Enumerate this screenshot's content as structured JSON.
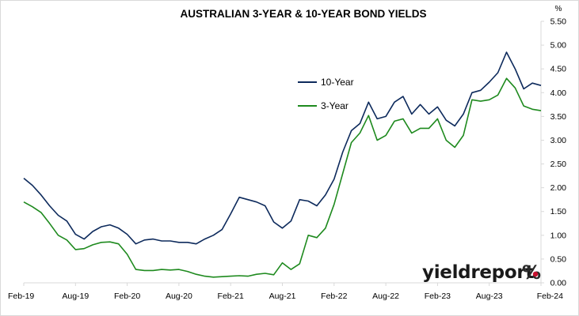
{
  "chart_data": {
    "type": "line",
    "title": "AUSTRALIAN 3-YEAR & 10-YEAR BOND YIELDS",
    "xlabel": "",
    "ylabel": "",
    "y_unit": "%",
    "ylim": [
      0,
      5.5
    ],
    "y_ticks": [
      "0.00",
      "0.50",
      "1.00",
      "1.50",
      "2.00",
      "2.50",
      "3.00",
      "3.50",
      "4.00",
      "4.50",
      "5.00",
      "5.50"
    ],
    "x_ticks": [
      "Feb-19",
      "Aug-19",
      "Feb-20",
      "Aug-20",
      "Feb-21",
      "Aug-21",
      "Feb-22",
      "Aug-22",
      "Feb-23",
      "Aug-23",
      "Feb-24"
    ],
    "legend_position": "center-right",
    "grid": false,
    "axis_position": "right",
    "x": [
      "2019-02",
      "2019-03",
      "2019-04",
      "2019-05",
      "2019-06",
      "2019-07",
      "2019-08",
      "2019-09",
      "2019-10",
      "2019-11",
      "2019-12",
      "2020-01",
      "2020-02",
      "2020-03",
      "2020-04",
      "2020-05",
      "2020-06",
      "2020-07",
      "2020-08",
      "2020-09",
      "2020-10",
      "2020-11",
      "2020-12",
      "2021-01",
      "2021-02",
      "2021-03",
      "2021-04",
      "2021-05",
      "2021-06",
      "2021-07",
      "2021-08",
      "2021-09",
      "2021-10",
      "2021-11",
      "2021-12",
      "2022-01",
      "2022-02",
      "2022-03",
      "2022-04",
      "2022-05",
      "2022-06",
      "2022-07",
      "2022-08",
      "2022-09",
      "2022-10",
      "2022-11",
      "2022-12",
      "2023-01",
      "2023-02",
      "2023-03",
      "2023-04",
      "2023-05",
      "2023-06",
      "2023-07",
      "2023-08",
      "2023-09",
      "2023-10",
      "2023-11",
      "2023-12",
      "2024-01",
      "2024-02"
    ],
    "series": [
      {
        "name": "10-Year",
        "color": "#0d2a5c",
        "values": [
          2.2,
          2.05,
          1.85,
          1.62,
          1.42,
          1.3,
          1.02,
          0.92,
          1.08,
          1.18,
          1.22,
          1.15,
          1.02,
          0.82,
          0.9,
          0.92,
          0.88,
          0.88,
          0.85,
          0.85,
          0.82,
          0.92,
          1.0,
          1.12,
          1.45,
          1.8,
          1.75,
          1.7,
          1.62,
          1.28,
          1.15,
          1.3,
          1.75,
          1.72,
          1.62,
          1.85,
          2.18,
          2.75,
          3.2,
          3.35,
          3.8,
          3.45,
          3.5,
          3.8,
          3.92,
          3.55,
          3.75,
          3.55,
          3.7,
          3.42,
          3.3,
          3.55,
          4.0,
          4.05,
          4.22,
          4.42,
          4.85,
          4.5,
          4.08,
          4.2,
          4.15
        ]
      },
      {
        "name": "3-Year",
        "color": "#1e8a1e",
        "values": [
          1.7,
          1.6,
          1.48,
          1.25,
          1.0,
          0.9,
          0.7,
          0.72,
          0.8,
          0.85,
          0.86,
          0.82,
          0.6,
          0.28,
          0.26,
          0.26,
          0.28,
          0.27,
          0.28,
          0.24,
          0.18,
          0.14,
          0.12,
          0.13,
          0.14,
          0.15,
          0.14,
          0.18,
          0.2,
          0.17,
          0.42,
          0.28,
          0.4,
          1.0,
          0.95,
          1.15,
          1.65,
          2.3,
          2.95,
          3.15,
          3.52,
          3.0,
          3.1,
          3.4,
          3.45,
          3.15,
          3.25,
          3.25,
          3.45,
          3.0,
          2.85,
          3.1,
          3.85,
          3.82,
          3.85,
          3.95,
          4.3,
          4.1,
          3.72,
          3.65,
          3.62
        ]
      }
    ]
  },
  "brand": {
    "name": "yieldreport",
    "symbol": "%"
  }
}
